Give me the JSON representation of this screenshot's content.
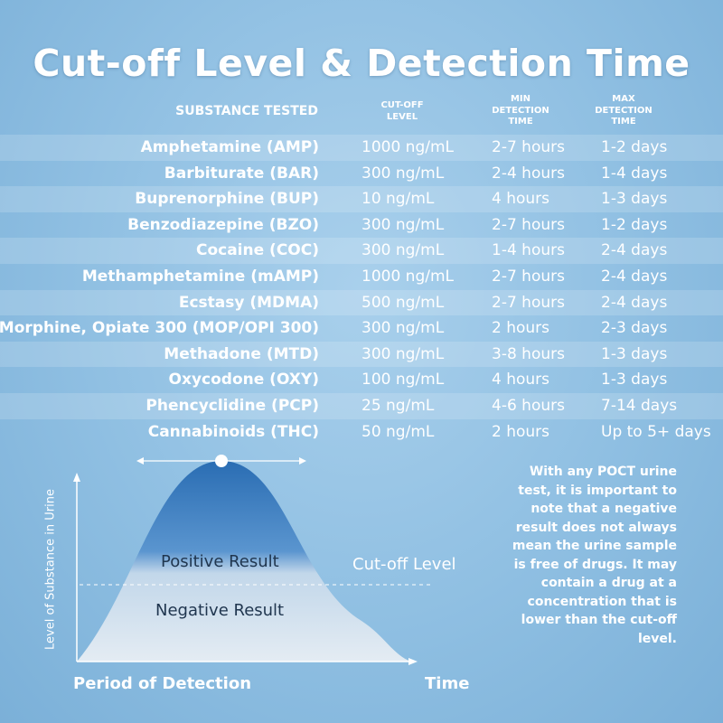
{
  "title": "Cut-off Level & Detection Time",
  "table": {
    "headers": {
      "substance": "SUBSTANCE TESTED",
      "cutoff": "CUT-OFF LEVEL",
      "min": "MIN DETECTION TIME",
      "max": "MAX DETECTION TIME"
    },
    "rows": [
      {
        "substance": "Amphetamine (AMP)",
        "cutoff": "1000 ng/mL",
        "min": "2-7 hours",
        "max": "1-2 days"
      },
      {
        "substance": "Barbiturate (BAR)",
        "cutoff": "300 ng/mL",
        "min": "2-4 hours",
        "max": "1-4 days"
      },
      {
        "substance": "Buprenorphine (BUP)",
        "cutoff": "10 ng/mL",
        "min": "4 hours",
        "max": "1-3 days"
      },
      {
        "substance": "Benzodiazepine (BZO)",
        "cutoff": "300 ng/mL",
        "min": "2-7 hours",
        "max": "1-2 days"
      },
      {
        "substance": "Cocaine (COC)",
        "cutoff": "300 ng/mL",
        "min": "1-4 hours",
        "max": "2-4 days"
      },
      {
        "substance": "Methamphetamine (mAMP)",
        "cutoff": "1000 ng/mL",
        "min": "2-7 hours",
        "max": "2-4 days"
      },
      {
        "substance": "Ecstasy (MDMA)",
        "cutoff": "500 ng/mL",
        "min": "2-7 hours",
        "max": "2-4 days"
      },
      {
        "substance": "Morphine, Opiate 300 (MOP/OPI 300)",
        "cutoff": "300 ng/mL",
        "min": "2 hours",
        "max": "2-3 days"
      },
      {
        "substance": "Methadone (MTD)",
        "cutoff": "300 ng/mL",
        "min": "3-8 hours",
        "max": "1-3 days"
      },
      {
        "substance": "Oxycodone (OXY)",
        "cutoff": "100 ng/mL",
        "min": "4 hours",
        "max": "1-3 days"
      },
      {
        "substance": "Phencyclidine (PCP)",
        "cutoff": "25 ng/mL",
        "min": "4-6 hours",
        "max": "7-14 days"
      },
      {
        "substance": "Cannabinoids (THC)",
        "cutoff": "50 ng/mL",
        "min": "2 hours",
        "max": "Up to 5+ days"
      }
    ]
  },
  "graph": {
    "positive_label": "Positive Result",
    "negative_label": "Negative Result",
    "cutoff_label": "Cut-off Level",
    "y_axis_label": "Level of Substance in Urine",
    "x_axis_label": "Period of Detection",
    "time_label": "Time"
  },
  "note": "With any POCT urine test, it is important to note that a negative result does not always mean the urine sample is free of drugs. It may contain a drug at a concentration that is lower than the cut-off level.",
  "colors": {
    "background": "#8fbfe2",
    "curve_top": "#2a6db3",
    "curve_bottom": "#dde8f1",
    "label_dark": "#20364f",
    "text": "#ffffff"
  }
}
